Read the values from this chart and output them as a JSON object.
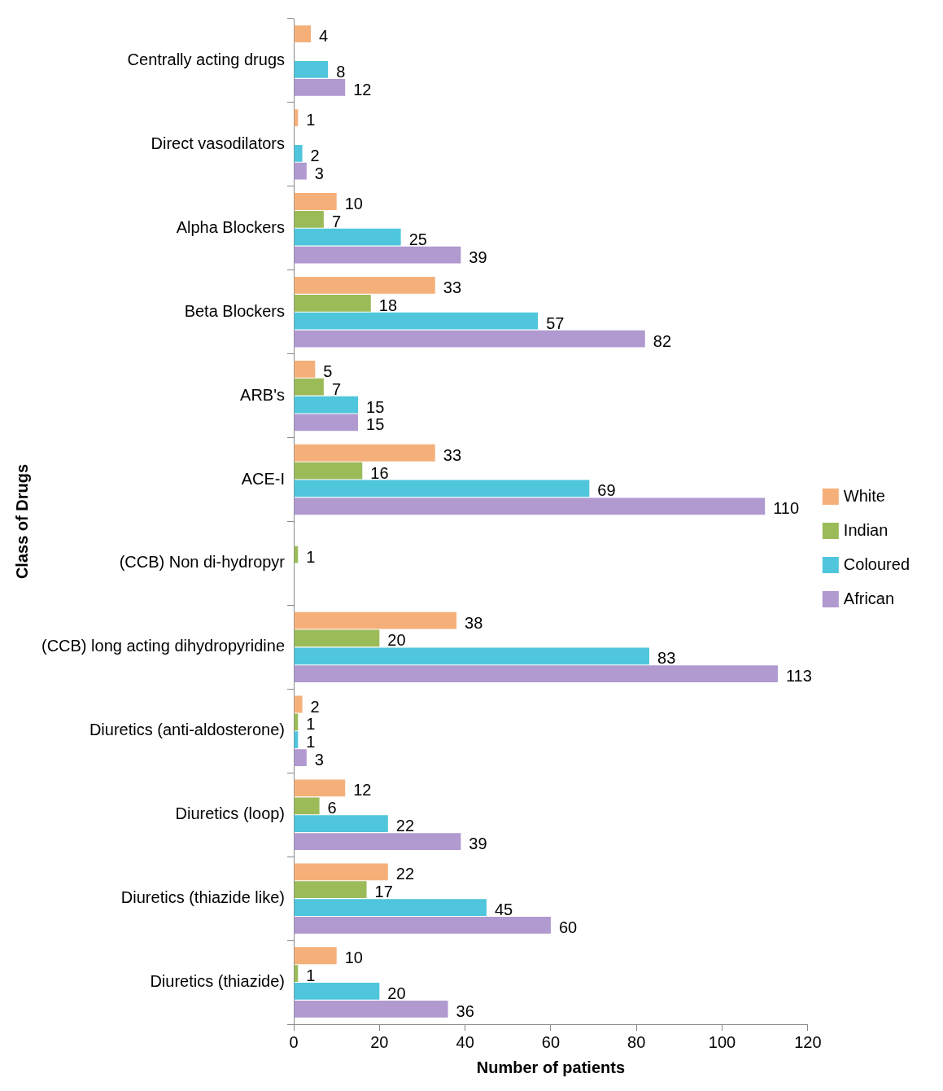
{
  "chart_data": {
    "type": "bar",
    "orientation": "horizontal",
    "xlabel": "Number of patients",
    "ylabel": "Class of Drugs",
    "categories": [
      "Centrally acting drugs",
      "Direct vasodilators",
      "Alpha Blockers",
      "Beta Blockers",
      "ARB's",
      "ACE-I",
      "(CCB) Non di-hydropyr",
      "(CCB) long acting dihydropyridine",
      "Diuretics (anti-aldosterone)",
      "Diuretics (loop)",
      "Diuretics (thiazide like)",
      "Diuretics (thiazide)"
    ],
    "series": [
      {
        "name": "White",
        "color": "#f5b07a",
        "values": [
          4,
          1,
          10,
          33,
          5,
          33,
          null,
          38,
          2,
          12,
          22,
          10
        ]
      },
      {
        "name": "Indian",
        "color": "#9bbb59",
        "values": [
          null,
          null,
          7,
          18,
          7,
          16,
          1,
          20,
          1,
          6,
          17,
          1
        ]
      },
      {
        "name": "Coloured",
        "color": "#4fc6dc",
        "values": [
          8,
          2,
          25,
          57,
          15,
          69,
          null,
          83,
          1,
          22,
          45,
          20
        ]
      },
      {
        "name": "African",
        "color": "#b09ad0",
        "values": [
          12,
          3,
          39,
          82,
          15,
          110,
          null,
          113,
          3,
          39,
          60,
          36
        ]
      }
    ],
    "xlim": [
      0,
      120
    ],
    "xticks": [
      0,
      20,
      40,
      60,
      80,
      100,
      120
    ],
    "grid": false,
    "legend": "right",
    "data_labels": true
  }
}
